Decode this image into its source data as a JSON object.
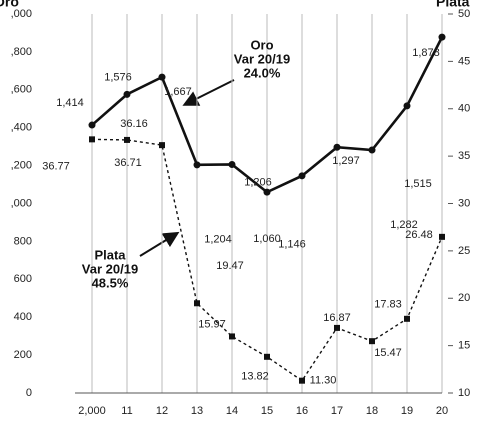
{
  "chart_data": {
    "type": "line",
    "ylabel": "Oro",
    "y2label": "Plata",
    "categories": [
      "2,000",
      "11",
      "12",
      "13",
      "14",
      "15",
      "16",
      "17",
      "18",
      "19",
      "20"
    ],
    "series": [
      {
        "name": "Oro",
        "color": "#111111",
        "values": [
          1414,
          1576,
          1667,
          1204,
          1206,
          1060,
          1146,
          1297,
          1282,
          1515,
          1878
        ],
        "value_labels": [
          "1,414",
          "1,576",
          "1,667",
          "1,204",
          "1,206",
          "1,060",
          "1,146",
          "1,297",
          "1,282",
          "1,515",
          "1,878"
        ]
      },
      {
        "name": "Plata",
        "color": "#111111",
        "axis": "y2",
        "values": [
          36.77,
          36.71,
          36.16,
          19.47,
          15.97,
          13.82,
          11.3,
          16.87,
          15.47,
          17.83,
          26.48
        ],
        "value_labels": [
          "36.77",
          "36.71",
          "36.16",
          "19.47",
          "15.97",
          "13.82",
          "11.30",
          "16.87",
          "15.47",
          "17.83",
          "26.48"
        ]
      }
    ],
    "ylim": [
      0,
      2000
    ],
    "yticks": [
      0,
      200,
      400,
      600,
      800,
      {
        "value": 1000,
        "label": ",000"
      },
      {
        "value": 1200,
        "label": ",200"
      },
      {
        "value": 1400,
        "label": ",400"
      },
      {
        "value": 1600,
        "label": ",600"
      },
      {
        "value": 1800,
        "label": ",800"
      },
      {
        "value": 2000,
        "label": ",000"
      }
    ],
    "y2lim": [
      10,
      50
    ],
    "y2ticks": [
      10,
      15,
      20,
      25,
      30,
      35,
      40,
      45,
      50
    ],
    "annotations": [
      {
        "lines": [
          "Oro",
          "Var 20/19",
          "24.0%"
        ]
      },
      {
        "lines": [
          "Plata",
          "Var 20/19",
          "48.5%"
        ]
      }
    ],
    "grid": true
  }
}
